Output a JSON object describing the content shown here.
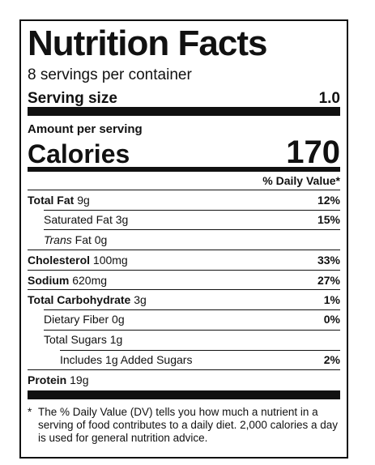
{
  "title": "Nutrition Facts",
  "servings_per_container": "8 servings per container",
  "serving_size": {
    "label": "Serving size",
    "value": "1.0"
  },
  "amount_per_serving": "Amount per serving",
  "calories": {
    "label": "Calories",
    "value": "170"
  },
  "daily_value_header": "% Daily Value*",
  "nutrients": [
    {
      "name": "Total Fat",
      "amount": "9g",
      "dv": "12%"
    },
    {
      "name": "Saturated Fat",
      "amount": "3g",
      "dv": "15%"
    },
    {
      "name": "Trans",
      "name_rest": " Fat",
      "amount": "0g",
      "dv": ""
    },
    {
      "name": "Cholesterol",
      "amount": "100mg",
      "dv": "33%"
    },
    {
      "name": "Sodium",
      "amount": "620mg",
      "dv": "27%"
    },
    {
      "name": "Total Carbohydrate",
      "amount": "3g",
      "dv": "1%"
    },
    {
      "name": "Dietary Fiber",
      "amount": "0g",
      "dv": "0%"
    },
    {
      "name": "Total Sugars",
      "amount": "1g",
      "dv": ""
    },
    {
      "name": "Includes 1g Added Sugars",
      "amount": "",
      "dv": "2%"
    },
    {
      "name": "Protein",
      "amount": "19g",
      "dv": ""
    }
  ],
  "footnote": {
    "star": "*",
    "text": "The % Daily Value (DV) tells you how much a nutrient in a serving of food contributes to a daily diet. 2,000 calories a day is used for general nutrition advice."
  }
}
